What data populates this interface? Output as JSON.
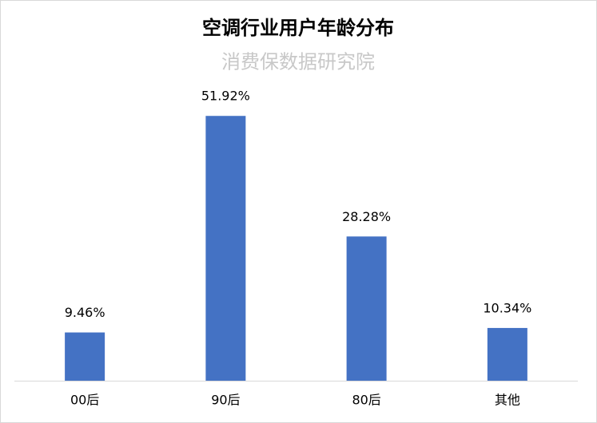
{
  "chart_data": {
    "type": "bar",
    "title": "空调行业用户年龄分布",
    "subtitle": "消费保数据研究院",
    "categories": [
      "00后",
      "90后",
      "80后",
      "其他"
    ],
    "values": [
      9.46,
      51.92,
      28.28,
      10.34
    ],
    "value_labels": [
      "9.46%",
      "51.92%",
      "28.28%",
      "10.34%"
    ],
    "color": "#4472c4",
    "ylim": [
      0,
      60
    ]
  }
}
